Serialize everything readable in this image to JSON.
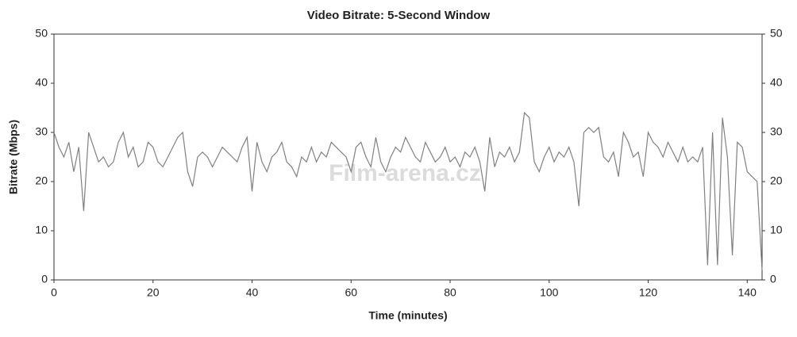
{
  "chart_data": {
    "type": "line",
    "title": "Video Bitrate: 5-Second Window",
    "x_label": "Time (minutes)",
    "y_label": "Bitrate (Mbps)",
    "watermark": "Film-arena.cz",
    "xlim": [
      0,
      143
    ],
    "xticks": [
      0,
      20,
      40,
      60,
      80,
      100,
      120,
      140
    ],
    "ylim": [
      0,
      50
    ],
    "yticks": [
      0,
      10,
      20,
      30,
      40,
      50
    ],
    "y2ticks": [
      0,
      10,
      20,
      30,
      40,
      50
    ],
    "grid": false,
    "series": [
      {
        "name": "Bitrate",
        "color": "#808080",
        "x": [
          0,
          1,
          2,
          3,
          4,
          5,
          6,
          7,
          8,
          9,
          10,
          11,
          12,
          13,
          14,
          15,
          16,
          17,
          18,
          19,
          20,
          21,
          22,
          23,
          24,
          25,
          26,
          27,
          28,
          29,
          30,
          31,
          32,
          33,
          34,
          35,
          36,
          37,
          38,
          39,
          40,
          41,
          42,
          43,
          44,
          45,
          46,
          47,
          48,
          49,
          50,
          51,
          52,
          53,
          54,
          55,
          56,
          57,
          58,
          59,
          60,
          61,
          62,
          63,
          64,
          65,
          66,
          67,
          68,
          69,
          70,
          71,
          72,
          73,
          74,
          75,
          76,
          77,
          78,
          79,
          80,
          81,
          82,
          83,
          84,
          85,
          86,
          87,
          88,
          89,
          90,
          91,
          92,
          93,
          94,
          95,
          96,
          97,
          98,
          99,
          100,
          101,
          102,
          103,
          104,
          105,
          106,
          107,
          108,
          109,
          110,
          111,
          112,
          113,
          114,
          115,
          116,
          117,
          118,
          119,
          120,
          121,
          122,
          123,
          124,
          125,
          126,
          127,
          128,
          129,
          130,
          131,
          132,
          133,
          134,
          135,
          136,
          137,
          138,
          139,
          140,
          141,
          142,
          143
        ],
        "values": [
          30,
          27,
          25,
          28,
          22,
          27,
          14,
          30,
          27,
          24,
          25,
          23,
          24,
          28,
          30,
          25,
          27,
          23,
          24,
          28,
          27,
          24,
          23,
          25,
          27,
          29,
          30,
          22,
          19,
          25,
          26,
          25,
          23,
          25,
          27,
          26,
          25,
          24,
          27,
          29,
          18,
          28,
          24,
          22,
          25,
          26,
          28,
          24,
          23,
          21,
          25,
          24,
          27,
          24,
          26,
          25,
          28,
          27,
          26,
          25,
          22,
          27,
          28,
          25,
          23,
          29,
          24,
          22,
          25,
          27,
          26,
          29,
          27,
          25,
          24,
          28,
          26,
          24,
          25,
          27,
          24,
          25,
          23,
          26,
          25,
          27,
          24,
          18,
          29,
          23,
          26,
          25,
          27,
          24,
          26,
          34,
          33,
          24,
          22,
          25,
          27,
          24,
          26,
          25,
          27,
          24,
          15,
          30,
          31,
          30,
          31,
          25,
          24,
          26,
          21,
          30,
          28,
          25,
          26,
          21,
          30,
          28,
          27,
          25,
          28,
          26,
          24,
          27,
          24,
          25,
          24,
          27,
          3,
          30,
          3,
          33,
          25,
          5,
          28,
          27,
          22,
          21,
          20,
          2
        ]
      }
    ]
  }
}
